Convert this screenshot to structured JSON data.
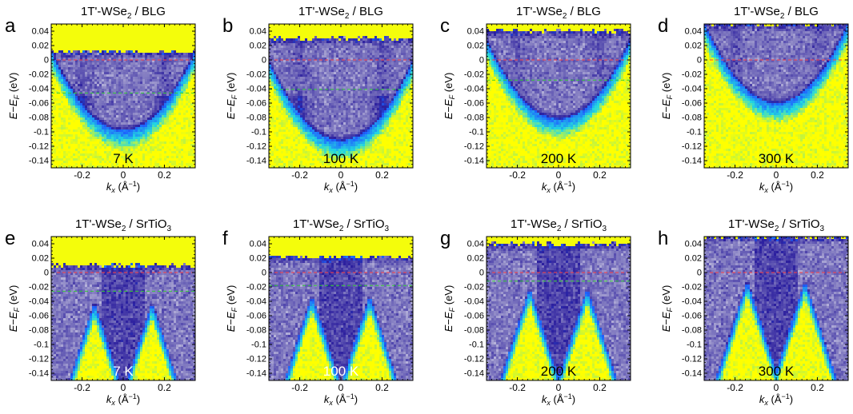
{
  "chart_data": {
    "type": "heatmap",
    "colormap": [
      "#ffffff",
      "#8a84c4",
      "#2c1f9e",
      "#1e64ff",
      "#23d8e0",
      "#ffff00"
    ],
    "reference_line_colors": {
      "fermi_level": "#ff4040",
      "gap_edge": "#33cc33"
    },
    "xlabel": "k_x (Å⁻¹)",
    "ylabel": "E−E_F (eV)",
    "xlim": [
      -0.35,
      0.35
    ],
    "ylim": [
      -0.15,
      0.05
    ],
    "x_ticks": [
      -0.2,
      0,
      0.2
    ],
    "x_tick_labels": [
      "-0.2",
      "0",
      "0.2"
    ],
    "y_ticks": [
      0.04,
      0.02,
      0,
      -0.02,
      -0.04,
      -0.06,
      -0.08,
      -0.1,
      -0.12,
      -0.14
    ],
    "y_tick_labels": [
      "0.04",
      "0.02",
      "0",
      "-0.02",
      "-0.04",
      "-0.06",
      "-0.08",
      "-0.1",
      "-0.12",
      "-0.14"
    ],
    "panels": [
      {
        "letter": "a",
        "title": "1T'-WSe",
        "title_sub": "2",
        "title_rest": " / BLG",
        "temperature": "7 K",
        "substrate": "BLG",
        "fermi_line": 0,
        "gap_line": -0.046,
        "band_top": -0.098,
        "cutoff": 0.012,
        "temp_text_color": "#000000"
      },
      {
        "letter": "b",
        "title": "1T'-WSe",
        "title_sub": "2",
        "title_rest": " / BLG",
        "temperature": "100 K",
        "substrate": "BLG",
        "fermi_line": 0,
        "gap_line": -0.041,
        "band_top": -0.112,
        "cutoff": 0.03,
        "temp_text_color": "#000000"
      },
      {
        "letter": "c",
        "title": "1T'-WSe",
        "title_sub": "2",
        "title_rest": " / BLG",
        "temperature": "200 K",
        "substrate": "BLG",
        "fermi_line": 0,
        "gap_line": -0.028,
        "band_top": -0.082,
        "cutoff": 0.04,
        "temp_text_color": "#000000"
      },
      {
        "letter": "d",
        "title": "1T'-WSe",
        "title_sub": "2",
        "title_rest": " / BLG",
        "temperature": "300 K",
        "substrate": "BLG",
        "fermi_line": 0,
        "gap_line": null,
        "band_top": -0.06,
        "cutoff": 0.05,
        "temp_text_color": "#000000"
      },
      {
        "letter": "e",
        "title": "1T'-WSe",
        "title_sub": "2",
        "title_rest": " / SrTiO",
        "title_sub2": "3",
        "temperature": "7 K",
        "substrate": "SrTiO3",
        "fermi_line": 0,
        "gap_line": -0.026,
        "band_top": -0.04,
        "cutoff": 0.01,
        "temp_text_color": "#ffffff"
      },
      {
        "letter": "f",
        "title": "1T'-WSe",
        "title_sub": "2",
        "title_rest": " / SrTiO",
        "title_sub2": "3",
        "temperature": "100 K",
        "substrate": "SrTiO3",
        "fermi_line": 0,
        "gap_line": -0.018,
        "band_top": -0.03,
        "cutoff": 0.022,
        "temp_text_color": "#ffffff"
      },
      {
        "letter": "g",
        "title": "1T'-WSe",
        "title_sub": "2",
        "title_rest": " / SrTiO",
        "title_sub2": "3",
        "temperature": "200 K",
        "substrate": "SrTiO3",
        "fermi_line": 0,
        "gap_line": -0.012,
        "band_top": -0.02,
        "cutoff": 0.04,
        "temp_text_color": "#000000"
      },
      {
        "letter": "h",
        "title": "1T'-WSe",
        "title_sub": "2",
        "title_rest": " / SrTiO",
        "title_sub2": "3",
        "temperature": "300 K",
        "substrate": "SrTiO3",
        "fermi_line": 0,
        "gap_line": null,
        "band_top": -0.01,
        "cutoff": 0.05,
        "temp_text_color": "#000000"
      }
    ]
  }
}
